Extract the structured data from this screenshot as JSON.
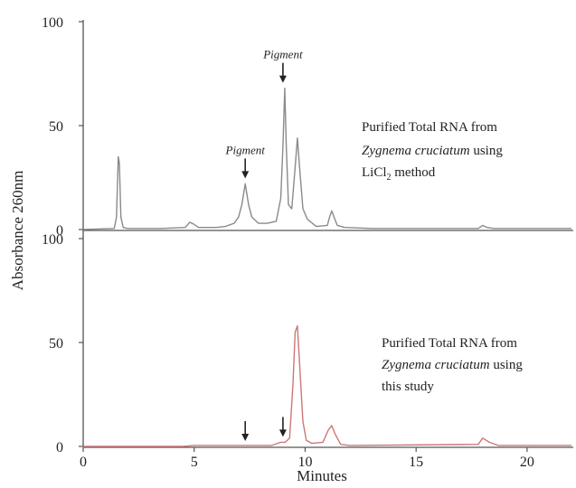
{
  "chart_data": {
    "type": "line",
    "xlabel": "Minutes",
    "ylabel": "Absorbance 260nm",
    "xlim": [
      0,
      22
    ],
    "x_ticks": [
      "0",
      "5",
      "10",
      "15",
      "20"
    ],
    "colors": {
      "top": "#8a8a8a",
      "bottom": "#cc7777",
      "axis": "#555555"
    },
    "panels": [
      {
        "id": "top",
        "ylim": [
          0,
          100
        ],
        "y_ticks": [
          "100",
          "50",
          "0"
        ],
        "annotation": {
          "line1": "Purified Total RNA from",
          "line2_italic": "Zygnema cruciatum",
          "line2_rest": " using",
          "line3_a": "LiCl",
          "line3_sub": "2",
          "line3_b": " method"
        },
        "arrows": [
          {
            "x": 7.3,
            "label": "Pigment"
          },
          {
            "x": 9.0,
            "label": "Pigment"
          }
        ],
        "series": {
          "x": [
            0,
            1.4,
            1.5,
            1.58,
            1.63,
            1.7,
            1.8,
            2.0,
            3.5,
            4.6,
            4.8,
            5.0,
            5.2,
            6.0,
            6.4,
            6.8,
            7.0,
            7.15,
            7.3,
            7.45,
            7.6,
            7.9,
            8.3,
            8.7,
            8.9,
            9.0,
            9.08,
            9.15,
            9.25,
            9.4,
            9.55,
            9.65,
            9.75,
            9.9,
            10.1,
            10.5,
            11.0,
            11.1,
            11.2,
            11.3,
            11.45,
            11.8,
            13,
            15,
            17.8,
            18.0,
            18.2,
            18.5,
            20,
            22
          ],
          "y": [
            0,
            0.5,
            6,
            35,
            32,
            6,
            1,
            0.5,
            0.5,
            1,
            3.5,
            2.5,
            1,
            1,
            1.5,
            3,
            6,
            12,
            22,
            12,
            6,
            3,
            3,
            4,
            15,
            40,
            68,
            40,
            12,
            10,
            30,
            44,
            30,
            10,
            5,
            1.5,
            2,
            6,
            9,
            6,
            2,
            1,
            0.5,
            0.5,
            0.5,
            2,
            1,
            0.5,
            0.5,
            0.5
          ]
        }
      },
      {
        "id": "bottom",
        "ylim": [
          0,
          100
        ],
        "y_ticks": [
          "100",
          "50",
          "0"
        ],
        "annotation": {
          "line1": "Purified Total RNA from",
          "line2_italic": "Zygnema cruciatum",
          "line2_rest": " using",
          "line3": "this study"
        },
        "arrows": [
          {
            "x": 7.3,
            "label": ""
          },
          {
            "x": 9.0,
            "label": ""
          }
        ],
        "series": {
          "x": [
            0,
            4.5,
            5.0,
            8.5,
            8.9,
            9.1,
            9.3,
            9.45,
            9.55,
            9.65,
            9.75,
            9.9,
            10.05,
            10.3,
            10.8,
            11.05,
            11.2,
            11.35,
            11.6,
            12,
            17.8,
            18.0,
            18.3,
            18.7,
            22
          ],
          "y": [
            0,
            0,
            0.5,
            0.5,
            2,
            2,
            4,
            30,
            55,
            58,
            40,
            12,
            3,
            1.5,
            2,
            8,
            10,
            6,
            1,
            0.5,
            1,
            4,
            2,
            0.5,
            0.5
          ]
        }
      }
    ]
  }
}
